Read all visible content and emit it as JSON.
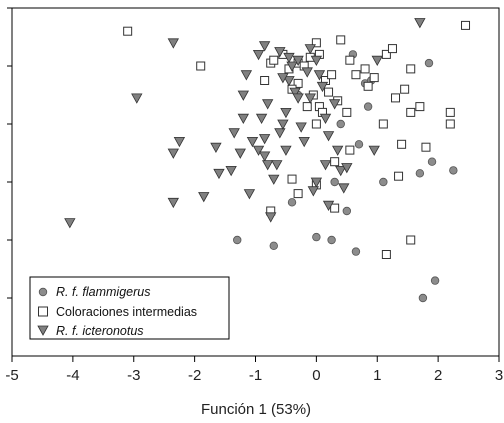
{
  "chart_data": {
    "type": "scatter",
    "title": "",
    "xlabel": "Función 1 (53%)",
    "ylabel": "",
    "xlim": [
      -5,
      3
    ],
    "ylim": [
      -3,
      3
    ],
    "x_ticks": [
      "-5",
      "-4",
      "-3",
      "-2",
      "-1",
      "0",
      "1",
      "2",
      "3"
    ],
    "y_tick_values": [
      -2,
      -1,
      0,
      1,
      2,
      3
    ],
    "grid": false,
    "legend_position": "bottom-left",
    "series": [
      {
        "name": "R. f. flammigerus",
        "italic": true,
        "marker": "circle",
        "color": "#8c8c8c",
        "points": [
          [
            -1.3,
            -1.0
          ],
          [
            -0.7,
            -1.1
          ],
          [
            -0.4,
            -0.35
          ],
          [
            0.0,
            -0.95
          ],
          [
            0.25,
            -1.0
          ],
          [
            0.65,
            -1.2
          ],
          [
            1.75,
            -2.0
          ],
          [
            1.95,
            -1.7
          ],
          [
            1.1,
            0.0
          ],
          [
            1.7,
            0.15
          ],
          [
            1.9,
            0.35
          ],
          [
            2.25,
            0.2
          ],
          [
            0.5,
            -0.5
          ],
          [
            0.3,
            0.0
          ],
          [
            0.7,
            0.65
          ],
          [
            0.8,
            1.7
          ],
          [
            0.6,
            2.2
          ],
          [
            1.85,
            2.05
          ],
          [
            0.85,
            1.3
          ],
          [
            0.4,
            1.0
          ],
          [
            -0.3,
            1.5
          ],
          [
            0.9,
            1.75
          ]
        ]
      },
      {
        "name": "Coloraciones intermedias",
        "italic": false,
        "marker": "square",
        "color": "#ffffff",
        "points": [
          [
            -3.1,
            2.6
          ],
          [
            2.45,
            2.7
          ],
          [
            -1.9,
            2.0
          ],
          [
            -0.85,
            1.75
          ],
          [
            -0.75,
            2.05
          ],
          [
            -0.7,
            2.1
          ],
          [
            -0.55,
            2.2
          ],
          [
            -0.45,
            1.95
          ],
          [
            -0.3,
            2.05
          ],
          [
            -0.2,
            2.0
          ],
          [
            -0.1,
            2.15
          ],
          [
            0.0,
            2.4
          ],
          [
            0.05,
            2.2
          ],
          [
            0.15,
            1.75
          ],
          [
            0.25,
            1.85
          ],
          [
            0.4,
            2.45
          ],
          [
            0.55,
            2.1
          ],
          [
            0.65,
            1.85
          ],
          [
            0.8,
            1.95
          ],
          [
            0.85,
            1.65
          ],
          [
            0.95,
            1.8
          ],
          [
            1.15,
            2.2
          ],
          [
            1.25,
            2.3
          ],
          [
            1.45,
            1.6
          ],
          [
            1.55,
            1.95
          ],
          [
            1.55,
            1.2
          ],
          [
            1.7,
            1.3
          ],
          [
            1.3,
            1.45
          ],
          [
            1.1,
            1.0
          ],
          [
            0.5,
            1.2
          ],
          [
            2.2,
            1.2
          ],
          [
            2.2,
            1.0
          ],
          [
            -0.15,
            1.3
          ],
          [
            -0.05,
            1.5
          ],
          [
            0.05,
            1.3
          ],
          [
            -0.3,
            1.7
          ],
          [
            -0.4,
            1.6
          ],
          [
            0.35,
            1.4
          ],
          [
            0.2,
            1.55
          ],
          [
            1.8,
            0.6
          ],
          [
            1.4,
            0.65
          ],
          [
            1.35,
            0.1
          ],
          [
            0.55,
            0.55
          ],
          [
            0.3,
            0.35
          ],
          [
            0.3,
            -0.45
          ],
          [
            -0.4,
            0.05
          ],
          [
            -0.3,
            -0.2
          ],
          [
            -0.75,
            -0.5
          ],
          [
            1.15,
            -1.25
          ],
          [
            1.55,
            -1.0
          ],
          [
            0.0,
            -0.05
          ],
          [
            0.1,
            1.2
          ],
          [
            0.0,
            1.0
          ]
        ]
      },
      {
        "name": "R. f. icteronotus",
        "italic": true,
        "marker": "triangle",
        "color": "#808080",
        "points": [
          [
            -4.05,
            -0.7
          ],
          [
            -2.95,
            1.45
          ],
          [
            -2.35,
            2.4
          ],
          [
            -2.35,
            0.5
          ],
          [
            -2.25,
            0.7
          ],
          [
            -2.35,
            -0.35
          ],
          [
            -1.85,
            -0.25
          ],
          [
            -1.65,
            0.6
          ],
          [
            -1.6,
            0.15
          ],
          [
            -1.35,
            0.85
          ],
          [
            -1.25,
            0.5
          ],
          [
            -1.2,
            1.1
          ],
          [
            -1.2,
            1.5
          ],
          [
            -1.15,
            1.85
          ],
          [
            -1.1,
            -0.2
          ],
          [
            -0.95,
            0.55
          ],
          [
            -0.9,
            1.1
          ],
          [
            -0.85,
            0.75
          ],
          [
            -0.85,
            0.45
          ],
          [
            -0.8,
            0.3
          ],
          [
            -0.8,
            1.35
          ],
          [
            -0.75,
            -0.6
          ],
          [
            -0.7,
            0.05
          ],
          [
            -0.65,
            0.3
          ],
          [
            -0.6,
            0.85
          ],
          [
            -0.55,
            1.0
          ],
          [
            -0.5,
            1.2
          ],
          [
            -0.5,
            0.55
          ],
          [
            -0.45,
            1.75
          ],
          [
            -0.4,
            2.0
          ],
          [
            -0.35,
            1.55
          ],
          [
            -0.3,
            1.45
          ],
          [
            -0.25,
            0.95
          ],
          [
            -0.2,
            0.7
          ],
          [
            -0.15,
            1.9
          ],
          [
            -0.1,
            2.3
          ],
          [
            0.0,
            2.1
          ],
          [
            0.05,
            1.85
          ],
          [
            0.1,
            1.65
          ],
          [
            0.15,
            1.1
          ],
          [
            0.2,
            0.8
          ],
          [
            0.3,
            1.35
          ],
          [
            0.35,
            0.55
          ],
          [
            0.4,
            0.2
          ],
          [
            0.45,
            -0.1
          ],
          [
            0.5,
            0.25
          ],
          [
            0.2,
            -0.4
          ],
          [
            0.0,
            0.0
          ],
          [
            -0.05,
            -0.15
          ],
          [
            -0.1,
            1.45
          ],
          [
            1.0,
            2.1
          ],
          [
            1.7,
            2.75
          ],
          [
            0.95,
            0.55
          ],
          [
            -0.95,
            2.2
          ],
          [
            -0.85,
            2.35
          ],
          [
            -0.6,
            2.25
          ],
          [
            -0.45,
            2.15
          ],
          [
            -0.3,
            2.1
          ],
          [
            -0.55,
            1.8
          ],
          [
            0.15,
            0.3
          ],
          [
            -1.4,
            0.2
          ],
          [
            -1.05,
            0.7
          ]
        ]
      }
    ]
  }
}
